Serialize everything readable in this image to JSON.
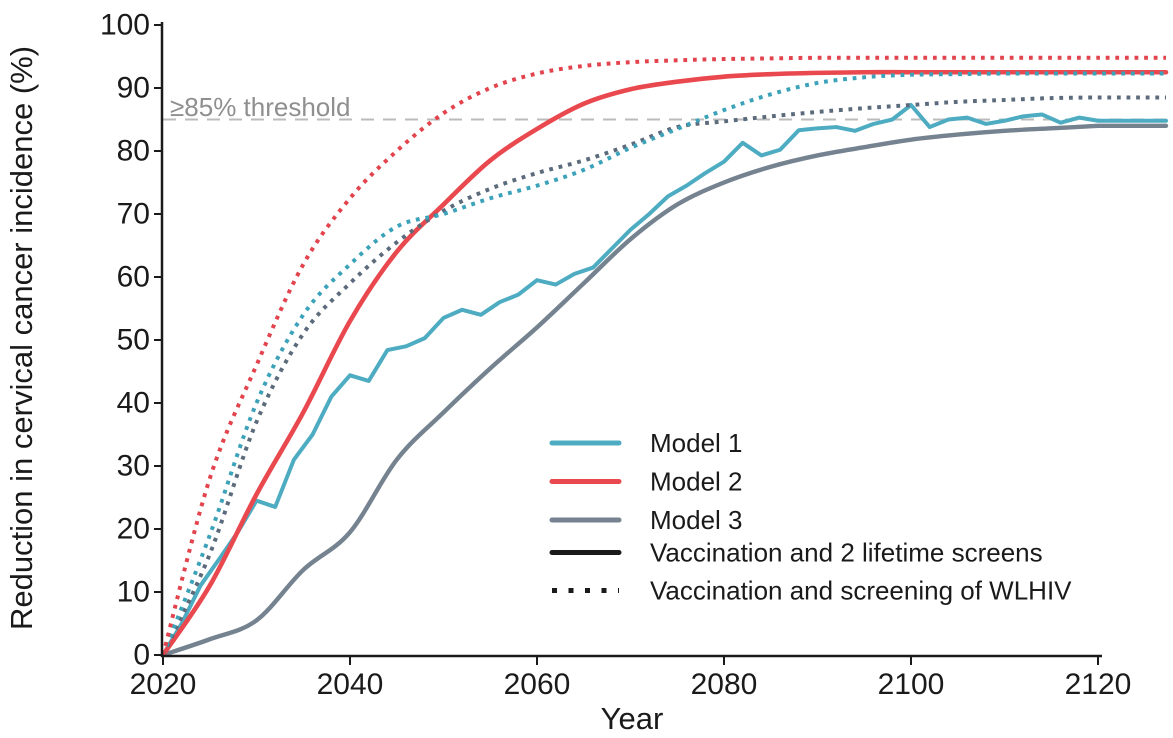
{
  "page": {
    "background": "#ffffff"
  },
  "chart_data": {
    "type": "line",
    "title": "",
    "xlabel": "Year",
    "ylabel": "Reduction in cervical cancer incidence (%)",
    "xlim": [
      2020,
      2120
    ],
    "ylim": [
      0,
      100
    ],
    "xticks": [
      2020,
      2040,
      2060,
      2080,
      2100,
      2120
    ],
    "yticks": [
      0,
      10,
      20,
      30,
      40,
      50,
      60,
      70,
      80,
      90,
      100
    ],
    "grid": false,
    "axis_color": "#1a1a1a",
    "legend_position": "inside lower-right",
    "threshold": {
      "value": 85,
      "label": "≥85% threshold",
      "line_color": "#bbbbbb",
      "label_color": "#8f8f8f"
    },
    "series": [
      {
        "name": "Model 3 - Vaccination and 2 lifetime screens",
        "model": "Model 3",
        "scenario": "Vaccination and 2 lifetime screens",
        "style": "solid",
        "jagged": false,
        "color": "#75828F",
        "width": 4.4,
        "x": [
          2020,
          2025,
          2030,
          2035,
          2040,
          2045,
          2050,
          2055,
          2060,
          2065,
          2070,
          2075,
          2080,
          2085,
          2090,
          2095,
          2100,
          2105,
          2110,
          2115,
          2120
        ],
        "y": [
          0,
          2.5,
          5.5,
          13.5,
          19.5,
          31,
          38.5,
          45.5,
          52,
          59,
          66,
          71.5,
          75,
          77.5,
          79.3,
          80.6,
          81.8,
          82.6,
          83.2,
          83.6,
          84
        ]
      },
      {
        "name": "Model 1 - Vaccination and 2 lifetime screens",
        "model": "Model 1",
        "scenario": "Vaccination and 2 lifetime screens",
        "style": "solid",
        "jagged": true,
        "color": "#4DACC1",
        "width": 4,
        "x": [
          2020,
          2022,
          2024,
          2026,
          2028,
          2030,
          2032,
          2034,
          2036,
          2038,
          2040,
          2042,
          2044,
          2046,
          2048,
          2050,
          2052,
          2054,
          2056,
          2058,
          2060,
          2062,
          2064,
          2066,
          2068,
          2070,
          2072,
          2074,
          2076,
          2078,
          2080,
          2082,
          2084,
          2086,
          2088,
          2090,
          2092,
          2094,
          2096,
          2098,
          2100,
          2102,
          2104,
          2106,
          2108,
          2110,
          2112,
          2114,
          2116,
          2118,
          2120
        ],
        "y": [
          0,
          5,
          11,
          15.2,
          19.5,
          24.5,
          23.5,
          31,
          35,
          41,
          44.4,
          43.5,
          48.4,
          49,
          50.3,
          53.5,
          54.8,
          54,
          56,
          57.2,
          59.5,
          58.8,
          60.5,
          61.5,
          64.5,
          67.5,
          70,
          72.8,
          74.5,
          76.5,
          78.3,
          81.3,
          79.3,
          80.2,
          83.3,
          83.6,
          83.8,
          83.2,
          84.3,
          85,
          87.3,
          83.8,
          85,
          85.3,
          84.3,
          84.8,
          85.5,
          85.8,
          84.5,
          85.3,
          84.8
        ]
      },
      {
        "name": "Model 2 - Vaccination and 2 lifetime screens",
        "model": "Model 2",
        "scenario": "Vaccination and 2 lifetime screens",
        "style": "solid",
        "jagged": false,
        "color": "#E9494E",
        "width": 4.6,
        "x": [
          2020,
          2025,
          2030,
          2035,
          2040,
          2045,
          2050,
          2055,
          2060,
          2065,
          2070,
          2075,
          2080,
          2085,
          2090,
          2095,
          2100,
          2105,
          2110,
          2115,
          2120
        ],
        "y": [
          0,
          11,
          25.5,
          38.5,
          53,
          64,
          71.5,
          78.5,
          83.5,
          87.5,
          89.8,
          91,
          91.8,
          92.2,
          92.4,
          92.5,
          92.5,
          92.5,
          92.5,
          92.5,
          92.5
        ]
      },
      {
        "name": "Model 3 - Vaccination and screening of WLHIV",
        "model": "Model 3",
        "scenario": "Vaccination and screening of WLHIV",
        "style": "dotted",
        "jagged": false,
        "color": "#5C6B7B",
        "width": 4,
        "x": [
          2020,
          2025,
          2030,
          2035,
          2040,
          2045,
          2050,
          2055,
          2060,
          2065,
          2070,
          2075,
          2080,
          2085,
          2090,
          2095,
          2100,
          2105,
          2110,
          2115,
          2120
        ],
        "y": [
          0,
          16,
          37,
          51,
          59,
          65.5,
          70.5,
          74,
          76.5,
          78.5,
          81,
          83.8,
          84.7,
          85.5,
          86.2,
          86.8,
          87.3,
          87.8,
          88.1,
          88.4,
          88.5
        ]
      },
      {
        "name": "Model 1 - Vaccination and screening of WLHIV",
        "model": "Model 1",
        "scenario": "Vaccination and screening of WLHIV",
        "style": "dotted",
        "jagged": false,
        "color": "#3BA2B9",
        "width": 4,
        "x": [
          2020,
          2025,
          2030,
          2035,
          2040,
          2045,
          2050,
          2055,
          2060,
          2065,
          2070,
          2075,
          2080,
          2085,
          2090,
          2095,
          2100,
          2105,
          2110,
          2115,
          2120
        ],
        "y": [
          0,
          19,
          40,
          54,
          62,
          68,
          70,
          72.5,
          74.5,
          77,
          80.5,
          83.5,
          86.5,
          89,
          90.8,
          91.7,
          92.1,
          92.2,
          92.3,
          92.3,
          92.3
        ]
      },
      {
        "name": "Model 2 - Vaccination and screening of WLHIV",
        "model": "Model 2",
        "scenario": "Vaccination and screening of WLHIV",
        "style": "dotted",
        "jagged": false,
        "color": "#E2434C",
        "width": 4,
        "x": [
          2020,
          2025,
          2030,
          2035,
          2040,
          2045,
          2050,
          2055,
          2060,
          2065,
          2070,
          2075,
          2080,
          2085,
          2090,
          2095,
          2100,
          2105,
          2110,
          2115,
          2120
        ],
        "y": [
          0,
          28,
          46,
          62,
          72.5,
          80,
          86,
          90,
          92.3,
          93.5,
          94.1,
          94.4,
          94.6,
          94.7,
          94.8,
          94.8,
          94.8,
          94.8,
          94.8,
          94.8,
          94.8
        ]
      }
    ],
    "legend_entries": [
      {
        "label": "Model 1",
        "color": "#4DACC1",
        "style": "solid",
        "width": 5
      },
      {
        "label": "Model 2",
        "color": "#E9494E",
        "style": "solid",
        "width": 5
      },
      {
        "label": "Model 3",
        "color": "#75828F",
        "style": "solid",
        "width": 5
      },
      {
        "label": "Vaccination and 2 lifetime screens",
        "color": "#1a1a1a",
        "style": "solid",
        "width": 5
      },
      {
        "label": "Vaccination and screening of WLHIV",
        "color": "#1a1a1a",
        "style": "dotted",
        "width": 5
      }
    ]
  }
}
